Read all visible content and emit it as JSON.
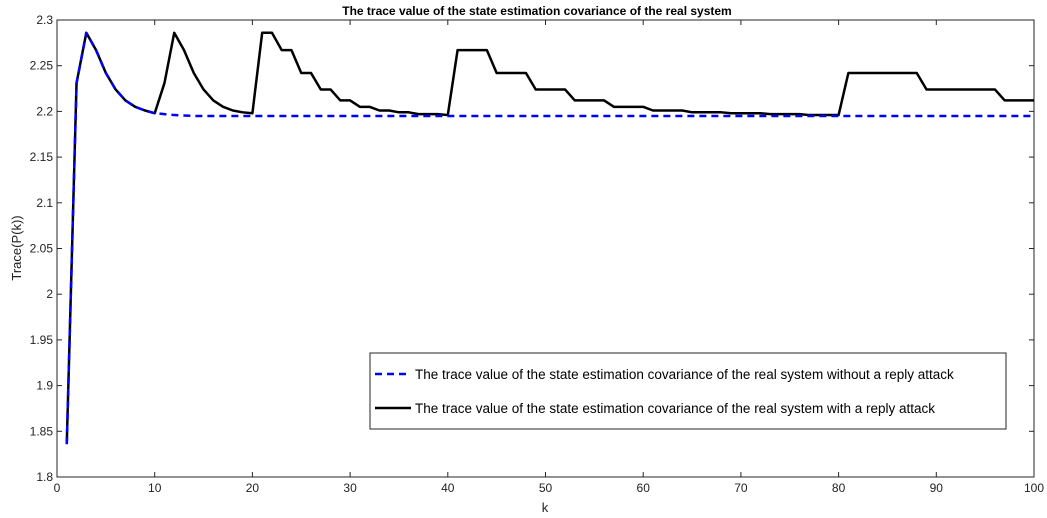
{
  "chart_data": {
    "type": "line",
    "title": "The trace value of the state estimation covariance of the real system",
    "xlabel": "k",
    "ylabel": "Trace(P(k))",
    "xlim": [
      0,
      100
    ],
    "ylim": [
      1.8,
      2.3
    ],
    "xticks": [
      0,
      10,
      20,
      30,
      40,
      50,
      60,
      70,
      80,
      90,
      100
    ],
    "yticks": [
      1.8,
      1.85,
      1.9,
      1.95,
      2,
      2.05,
      2.1,
      2.15,
      2.2,
      2.25,
      2.3
    ],
    "ytick_labels": [
      "1.8",
      "1.85",
      "1.9",
      "1.95",
      "2",
      "2.05",
      "2.1",
      "2.15",
      "2.2",
      "2.25",
      "2.3"
    ],
    "grid": false,
    "legend_position": "lower-right",
    "series": [
      {
        "name": "The trace value of the state estimation covariance of the real system without a reply attack",
        "color": "#0000ff",
        "line_style": "dashed",
        "x": [
          1,
          2,
          3,
          4,
          5,
          6,
          7,
          8,
          9,
          10,
          11,
          12,
          13,
          14,
          15,
          16,
          17,
          18,
          19,
          20,
          25,
          30,
          40,
          50,
          60,
          70,
          80,
          90,
          100
        ],
        "y": [
          1.836,
          2.231,
          2.286,
          2.267,
          2.242,
          2.224,
          2.212,
          2.205,
          2.201,
          2.198,
          2.197,
          2.196,
          2.1955,
          2.195,
          2.195,
          2.195,
          2.195,
          2.195,
          2.195,
          2.195,
          2.195,
          2.195,
          2.195,
          2.195,
          2.195,
          2.195,
          2.195,
          2.195,
          2.195
        ]
      },
      {
        "name": "The trace value of the state estimation covariance of the real system with a reply attack",
        "color": "#000000",
        "line_style": "solid",
        "x": [
          1,
          2,
          3,
          4,
          5,
          6,
          7,
          8,
          9,
          10,
          11,
          12,
          13,
          14,
          15,
          16,
          17,
          18,
          19,
          20,
          21,
          22,
          23,
          24,
          25,
          26,
          27,
          28,
          29,
          30,
          31,
          32,
          33,
          34,
          35,
          36,
          37,
          38,
          39,
          40,
          41,
          44,
          45,
          48,
          49,
          52,
          53,
          56,
          57,
          60,
          61,
          64,
          65,
          68,
          69,
          72,
          73,
          76,
          77,
          80,
          81,
          88,
          89,
          96,
          97,
          100
        ],
        "y": [
          1.836,
          2.231,
          2.286,
          2.267,
          2.242,
          2.224,
          2.212,
          2.205,
          2.201,
          2.198,
          2.231,
          2.286,
          2.267,
          2.242,
          2.224,
          2.212,
          2.205,
          2.201,
          2.199,
          2.198,
          2.286,
          2.286,
          2.267,
          2.267,
          2.242,
          2.242,
          2.224,
          2.224,
          2.212,
          2.212,
          2.205,
          2.205,
          2.201,
          2.201,
          2.199,
          2.199,
          2.197,
          2.197,
          2.197,
          2.196,
          2.267,
          2.267,
          2.242,
          2.242,
          2.224,
          2.224,
          2.212,
          2.212,
          2.205,
          2.205,
          2.201,
          2.201,
          2.199,
          2.199,
          2.198,
          2.198,
          2.197,
          2.197,
          2.196,
          2.196,
          2.242,
          2.242,
          2.224,
          2.224,
          2.212,
          2.212
        ]
      }
    ]
  }
}
